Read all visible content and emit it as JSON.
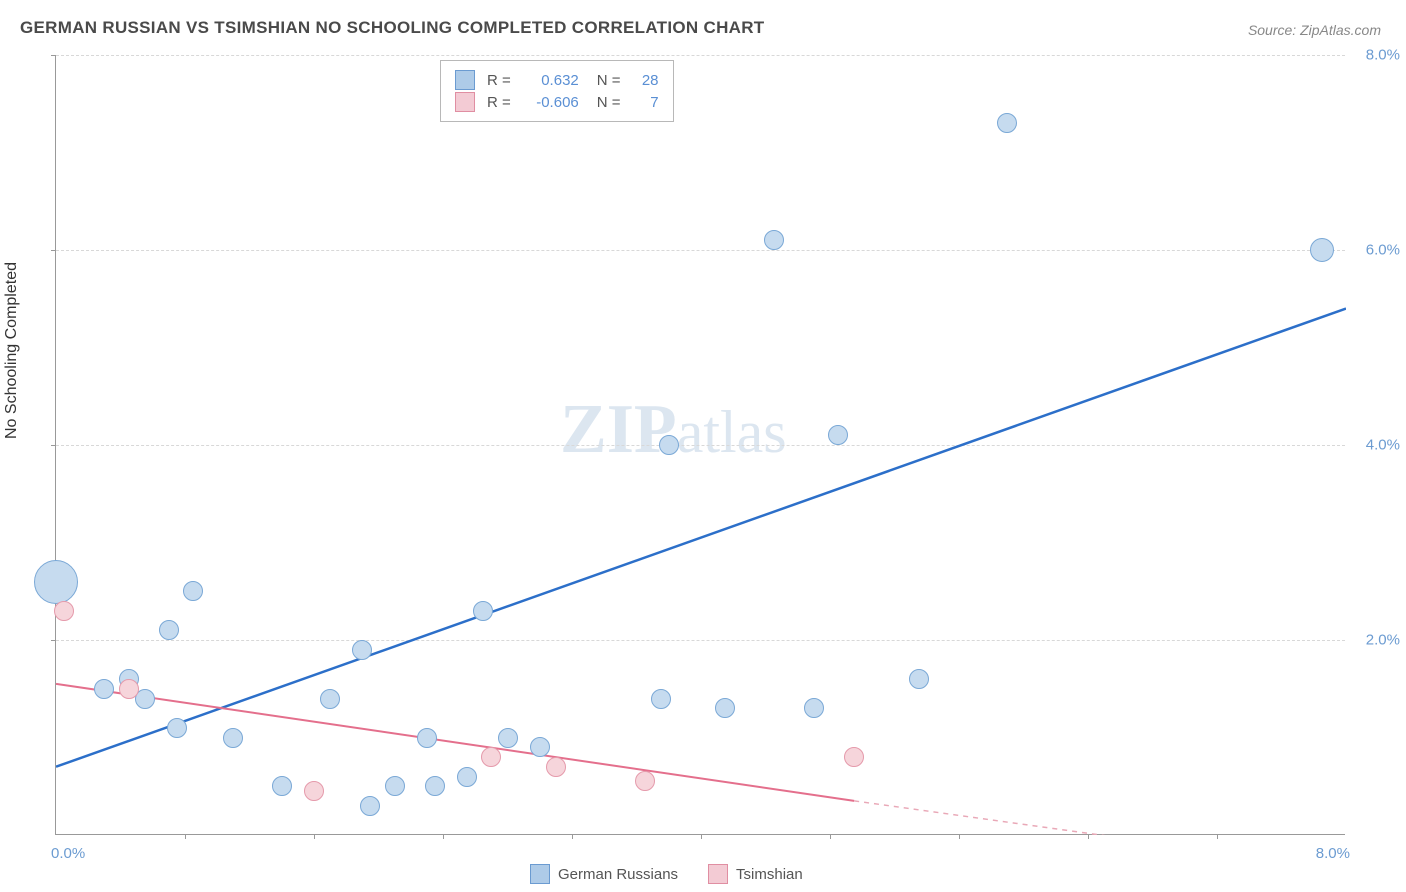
{
  "title": "GERMAN RUSSIAN VS TSIMSHIAN NO SCHOOLING COMPLETED CORRELATION CHART",
  "source": "Source: ZipAtlas.com",
  "ylabel": "No Schooling Completed",
  "watermark_bold": "ZIP",
  "watermark_rest": "atlas",
  "chart": {
    "type": "scatter",
    "xlim": [
      0,
      8
    ],
    "ylim": [
      0,
      8
    ],
    "x_tick_labels": [
      "0.0%",
      "8.0%"
    ],
    "x_tick_positions": [
      0,
      8
    ],
    "y_tick_labels": [
      "2.0%",
      "4.0%",
      "6.0%",
      "8.0%"
    ],
    "y_tick_positions": [
      2,
      4,
      6,
      8
    ],
    "minor_tick_x_positions": [
      0.8,
      1.6,
      2.4,
      3.2,
      4.0,
      4.8,
      5.6,
      6.4,
      7.2
    ],
    "grid_color": "#d8d8d8",
    "background_color": "#ffffff",
    "axis_color": "#999999",
    "tick_label_color": "#6b9bd1"
  },
  "series": [
    {
      "name": "German Russians",
      "fill_color": "#c6dbef",
      "stroke_color": "#7aa8d6",
      "legend_swatch_fill": "#aecbe8",
      "legend_swatch_stroke": "#6b9bd1",
      "R": "0.632",
      "N": "28",
      "default_radius": 10,
      "points": [
        {
          "x": 0.0,
          "y": 2.6,
          "r": 22
        },
        {
          "x": 0.3,
          "y": 1.5,
          "r": 10
        },
        {
          "x": 0.45,
          "y": 1.6,
          "r": 10
        },
        {
          "x": 0.55,
          "y": 1.4,
          "r": 10
        },
        {
          "x": 0.7,
          "y": 2.1,
          "r": 10
        },
        {
          "x": 0.75,
          "y": 1.1,
          "r": 10
        },
        {
          "x": 0.85,
          "y": 2.5,
          "r": 10
        },
        {
          "x": 1.1,
          "y": 1.0,
          "r": 10
        },
        {
          "x": 1.4,
          "y": 0.5,
          "r": 10
        },
        {
          "x": 1.7,
          "y": 1.4,
          "r": 10
        },
        {
          "x": 1.9,
          "y": 1.9,
          "r": 10
        },
        {
          "x": 1.95,
          "y": 0.3,
          "r": 10
        },
        {
          "x": 2.1,
          "y": 0.5,
          "r": 10
        },
        {
          "x": 2.3,
          "y": 1.0,
          "r": 10
        },
        {
          "x": 2.35,
          "y": 0.5,
          "r": 10
        },
        {
          "x": 2.55,
          "y": 0.6,
          "r": 10
        },
        {
          "x": 2.65,
          "y": 2.3,
          "r": 10
        },
        {
          "x": 2.8,
          "y": 1.0,
          "r": 10
        },
        {
          "x": 3.0,
          "y": 0.9,
          "r": 10
        },
        {
          "x": 3.75,
          "y": 1.4,
          "r": 10
        },
        {
          "x": 3.8,
          "y": 4.0,
          "r": 10
        },
        {
          "x": 4.15,
          "y": 1.3,
          "r": 10
        },
        {
          "x": 4.45,
          "y": 6.1,
          "r": 10
        },
        {
          "x": 4.7,
          "y": 1.3,
          "r": 10
        },
        {
          "x": 4.85,
          "y": 4.1,
          "r": 10
        },
        {
          "x": 5.35,
          "y": 1.6,
          "r": 10
        },
        {
          "x": 5.9,
          "y": 7.3,
          "r": 10
        },
        {
          "x": 7.85,
          "y": 6.0,
          "r": 12
        }
      ],
      "trend_line": {
        "x1": 0,
        "y1": 0.7,
        "x2": 8,
        "y2": 5.4,
        "color": "#2c6fc9",
        "width": 2.5,
        "dash": "none"
      }
    },
    {
      "name": "Tsimshian",
      "fill_color": "#f6d5db",
      "stroke_color": "#e59aab",
      "legend_swatch_fill": "#f3cbd4",
      "legend_swatch_stroke": "#e08ea2",
      "R": "-0.606",
      "N": "7",
      "default_radius": 10,
      "points": [
        {
          "x": 0.05,
          "y": 2.3,
          "r": 10
        },
        {
          "x": 0.45,
          "y": 1.5,
          "r": 10
        },
        {
          "x": 1.6,
          "y": 0.45,
          "r": 10
        },
        {
          "x": 2.7,
          "y": 0.8,
          "r": 10
        },
        {
          "x": 3.1,
          "y": 0.7,
          "r": 10
        },
        {
          "x": 3.65,
          "y": 0.55,
          "r": 10
        },
        {
          "x": 4.95,
          "y": 0.8,
          "r": 10
        }
      ],
      "trend_line": {
        "x1": 0,
        "y1": 1.55,
        "x2": 4.95,
        "y2": 0.35,
        "color": "#e46f8c",
        "width": 2,
        "dash": "none"
      },
      "trend_line_ext": {
        "x1": 4.95,
        "y1": 0.35,
        "x2": 8,
        "y2": -0.35,
        "color": "#e9a8b7",
        "width": 1.5,
        "dash": "5,5"
      }
    }
  ],
  "legend_bottom": [
    {
      "label": "German Russians",
      "fill": "#aecbe8",
      "stroke": "#6b9bd1"
    },
    {
      "label": "Tsimshian",
      "fill": "#f3cbd4",
      "stroke": "#e08ea2"
    }
  ]
}
